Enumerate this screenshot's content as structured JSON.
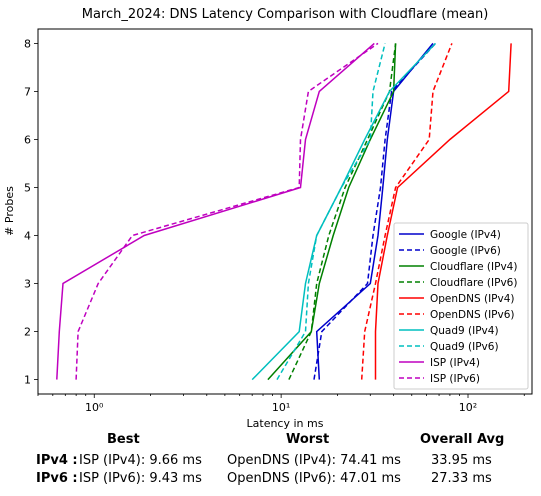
{
  "chart_data": {
    "type": "line",
    "title": "March_2024: DNS Latency Comparison with Cloudflare (mean)",
    "xlabel": "Latency in ms",
    "ylabel": "# Probes",
    "xscale": "log",
    "xlim": [
      0.5,
      220
    ],
    "ylim": [
      0.7,
      8.3
    ],
    "x_ticks": [
      1,
      10,
      100
    ],
    "x_tick_labels": [
      "10⁰",
      "10¹",
      "10²"
    ],
    "y_ticks": [
      1,
      2,
      3,
      4,
      5,
      6,
      7,
      8
    ],
    "grid": false,
    "legend_position": "lower-right",
    "series": [
      {
        "name": "Google (IPv4)",
        "color": "#0000cc",
        "dash": "solid",
        "x": [
          16,
          15.5,
          30,
          33,
          35,
          37,
          40,
          65
        ],
        "y": [
          1,
          2,
          3,
          4,
          5,
          6,
          7,
          8
        ]
      },
      {
        "name": "Google (IPv6)",
        "color": "#0000cc",
        "dash": "dashed",
        "x": [
          15,
          16.5,
          29,
          31,
          34,
          36,
          39,
          67
        ],
        "y": [
          1,
          2,
          3,
          4,
          5,
          6,
          7,
          8
        ]
      },
      {
        "name": "Cloudflare (IPv4)",
        "color": "#008000",
        "dash": "solid",
        "x": [
          8.5,
          14.5,
          16,
          19,
          23,
          30,
          40,
          41
        ],
        "y": [
          1,
          2,
          3,
          4,
          5,
          6,
          7,
          8
        ]
      },
      {
        "name": "Cloudflare (IPv6)",
        "color": "#008000",
        "dash": "dashed",
        "x": [
          11,
          14.5,
          15.5,
          18,
          22,
          29,
          38,
          41
        ],
        "y": [
          1,
          2,
          3,
          4,
          5,
          6,
          7,
          8
        ]
      },
      {
        "name": "OpenDNS (IPv4)",
        "color": "#ff0000",
        "dash": "solid",
        "x": [
          32,
          32,
          33,
          37,
          42,
          80,
          165,
          170
        ],
        "y": [
          1,
          2,
          3,
          4,
          5,
          6,
          7,
          8
        ]
      },
      {
        "name": "OpenDNS (IPv6)",
        "color": "#ff0000",
        "dash": "dashed",
        "x": [
          27,
          28,
          32,
          36,
          41,
          62,
          65,
          82
        ],
        "y": [
          1,
          2,
          3,
          4,
          5,
          6,
          7,
          8
        ]
      },
      {
        "name": "Quad9 (IPv4)",
        "color": "#00bfbf",
        "dash": "solid",
        "x": [
          7,
          12.5,
          13.5,
          15.5,
          21,
          28,
          38,
          67
        ],
        "y": [
          1,
          2,
          3,
          4,
          5,
          6,
          7,
          8
        ]
      },
      {
        "name": "Quad9 (IPv6)",
        "color": "#00bfbf",
        "dash": "dashed",
        "x": [
          9.5,
          13.5,
          14,
          15.5,
          21,
          30,
          31,
          36
        ],
        "y": [
          1,
          2,
          3,
          4,
          5,
          6,
          7,
          8
        ]
      },
      {
        "name": "ISP (IPv4)",
        "color": "#bf00bf",
        "dash": "solid",
        "x": [
          0.63,
          0.65,
          0.68,
          1.85,
          12.7,
          13.5,
          16,
          31.5
        ],
        "y": [
          1,
          2,
          3,
          4,
          5,
          6,
          7,
          8
        ]
      },
      {
        "name": "ISP (IPv6)",
        "color": "#bf00bf",
        "dash": "dashed",
        "x": [
          0.8,
          0.82,
          1.05,
          1.6,
          12.5,
          12.7,
          14,
          33
        ],
        "y": [
          1,
          2,
          3,
          4,
          5,
          6,
          7,
          8
        ]
      }
    ]
  },
  "summary": {
    "headers": {
      "best": "Best",
      "worst": "Worst",
      "overall": "Overall Avg"
    },
    "rows": [
      {
        "label": "IPv4 :",
        "best": "ISP (IPv4): 9.66 ms",
        "worst": "OpenDNS (IPv4): 74.41 ms",
        "overall": "33.95 ms"
      },
      {
        "label": "IPv6 :",
        "best": "ISP (IPv6): 9.43 ms",
        "worst": "OpenDNS (IPv6): 47.01 ms",
        "overall": "27.33 ms"
      }
    ]
  }
}
